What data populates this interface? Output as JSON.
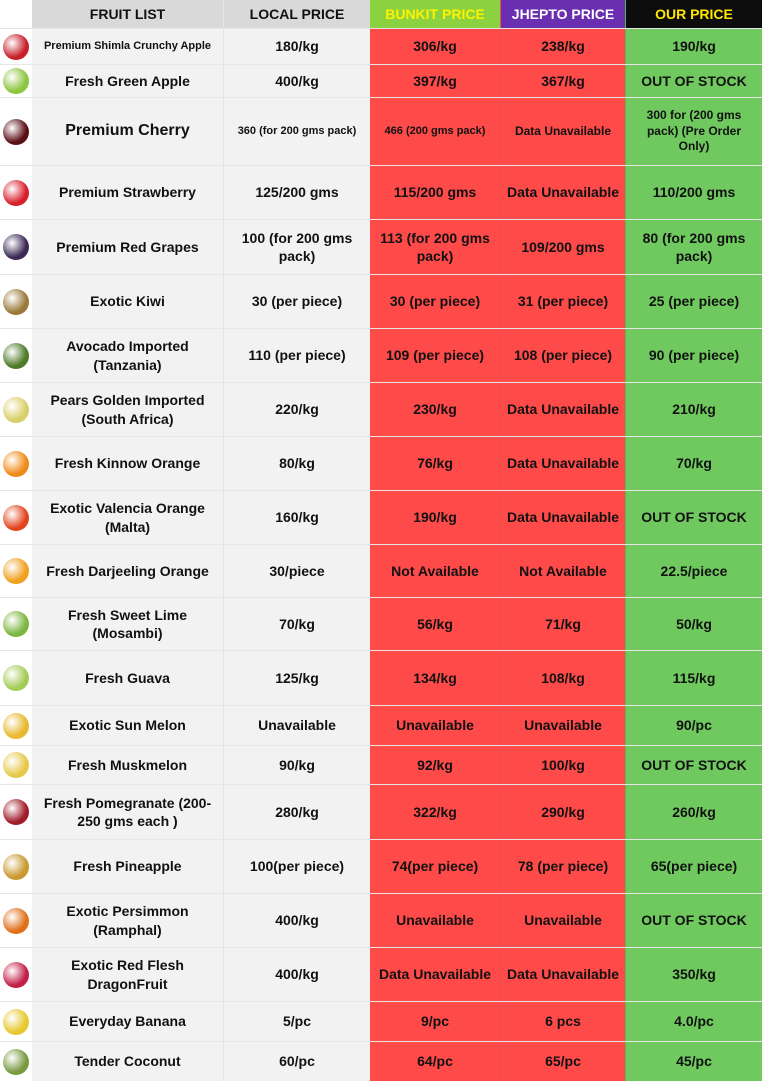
{
  "header": {
    "fruit_list": "FRUIT LIST",
    "local_price": "LOCAL PRICE",
    "bunkit_price": "BUNKIT PRICE",
    "jhepto_price": "JHEPTO PRICE",
    "our_price": "OUR PRICE"
  },
  "rows": [
    {
      "name": "Premium Shimla Crunchy Apple",
      "local": "180/kg",
      "bunkit": "306/kg",
      "jhepto": "238/kg",
      "ours": "190/kg",
      "color": "#c8202a"
    },
    {
      "name": "Fresh Green Apple",
      "local": "400/kg",
      "bunkit": "397/kg",
      "jhepto": "367/kg",
      "ours": "OUT OF STOCK",
      "color": "#8dc63f"
    },
    {
      "name": "Premium Cherry",
      "local": "360 (for 200 gms pack)",
      "bunkit": "466 (200 gms pack)",
      "jhepto": "Data Unavailable",
      "ours": "300 for (200 gms pack) (Pre Order Only)",
      "color": "#5a0f14"
    },
    {
      "name": "Premium Strawberry",
      "local": "125/200 gms",
      "bunkit": "115/200 gms",
      "jhepto": "Data Unavailable",
      "ours": "110/200 gms",
      "color": "#d8202b"
    },
    {
      "name": "Premium Red Grapes",
      "local": "100 (for 200 gms pack)",
      "bunkit": "113 (for 200 gms pack)",
      "jhepto": "109/200 gms",
      "ours": "80 (for 200 gms pack)",
      "color": "#3b2a55"
    },
    {
      "name": "Exotic Kiwi",
      "local": "30 (per piece)",
      "bunkit": "30 (per piece)",
      "jhepto": "31 (per piece)",
      "ours": "25 (per piece)",
      "color": "#9a7a3a"
    },
    {
      "name": "Avocado Imported (Tanzania)",
      "local": "110 (per piece)",
      "bunkit": "109 (per piece)",
      "jhepto": "108 (per piece)",
      "ours": "90 (per piece)",
      "color": "#4f7a28"
    },
    {
      "name": "Pears Golden Imported (South Africa)",
      "local": "220/kg",
      "bunkit": "230/kg",
      "jhepto": "Data Unavailable",
      "ours": "210/kg",
      "color": "#d9cf6a"
    },
    {
      "name": "Fresh Kinnow Orange",
      "local": "80/kg",
      "bunkit": "76/kg",
      "jhepto": "Data Unavailable",
      "ours": "70/kg",
      "color": "#f08a18"
    },
    {
      "name": "Exotic Valencia Orange (Malta)",
      "local": "160/kg",
      "bunkit": "190/kg",
      "jhepto": "Data Unavailable",
      "ours": "OUT OF STOCK",
      "color": "#e2451e"
    },
    {
      "name": "Fresh Darjeeling Orange",
      "local": "30/piece",
      "bunkit": "Not Available",
      "jhepto": "Not Available",
      "ours": "22.5/piece",
      "color": "#f0a020"
    },
    {
      "name": "Fresh Sweet Lime (Mosambi)",
      "local": "70/kg",
      "bunkit": "56/kg",
      "jhepto": "71/kg",
      "ours": "50/kg",
      "color": "#7db640"
    },
    {
      "name": "Fresh Guava",
      "local": "125/kg",
      "bunkit": "134/kg",
      "jhepto": "108/kg",
      "ours": "115/kg",
      "color": "#a4cc55"
    },
    {
      "name": "Exotic Sun Melon",
      "local": "Unavailable",
      "bunkit": "Unavailable",
      "jhepto": "Unavailable",
      "ours": "90/pc",
      "color": "#e8b830"
    },
    {
      "name": "Fresh Muskmelon",
      "local": "90/kg",
      "bunkit": "92/kg",
      "jhepto": "100/kg",
      "ours": "OUT OF STOCK",
      "color": "#e7c94a"
    },
    {
      "name": "Fresh Pomegranate (200-250 gms each )",
      "local": "280/kg",
      "bunkit": "322/kg",
      "jhepto": "290/kg",
      "ours": "260/kg",
      "color": "#a01c2a"
    },
    {
      "name": "Fresh Pineapple",
      "local": "100(per piece)",
      "bunkit": "74(per piece)",
      "jhepto": "78 (per piece)",
      "ours": "65(per piece)",
      "color": "#c99a30"
    },
    {
      "name": "Exotic Persimmon (Ramphal)",
      "local": "400/kg",
      "bunkit": "Unavailable",
      "jhepto": "Unavailable",
      "ours": "OUT OF STOCK",
      "color": "#e0701a"
    },
    {
      "name": "Exotic Red Flesh DragonFruit",
      "local": "400/kg",
      "bunkit": "Data Unavailable",
      "jhepto": "Data Unavailable",
      "ours": "350/kg",
      "color": "#c2204a"
    },
    {
      "name": "Everyday Banana",
      "local": "5/pc",
      "bunkit": "9/pc",
      "jhepto": "6 pcs",
      "ours": "4.0/pc",
      "color": "#e8c830"
    },
    {
      "name": "Tender Coconut",
      "local": "60/pc",
      "bunkit": "64/pc",
      "jhepto": "65/pc",
      "ours": "45/pc",
      "color": "#7a9a40"
    }
  ]
}
